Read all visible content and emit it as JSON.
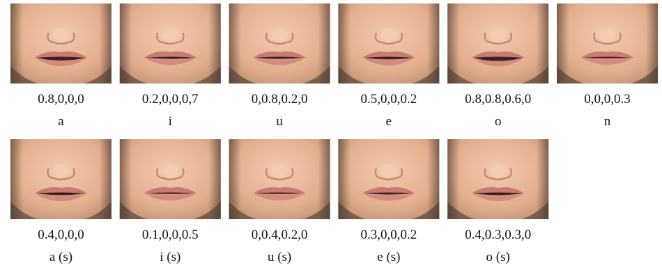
{
  "panels": [
    {
      "params": "0.8,0,0,0",
      "label": "a"
    },
    {
      "params": "0.2,0,0,0,7",
      "label": "i"
    },
    {
      "params": "0,0.8,0.2,0",
      "label": "u"
    },
    {
      "params": "0.5,0,0,0.2",
      "label": "e"
    },
    {
      "params": "0.8,0.8,0.6,0",
      "label": "o"
    },
    {
      "params": "0,0,0,0.3",
      "label": "n"
    },
    {
      "params": "0.4,0,0,0",
      "label": "a (s)"
    },
    {
      "params": "0.1,0,0,0.5",
      "label": "i (s)"
    },
    {
      "params": "0,0.4,0.2,0",
      "label": "u (s)"
    },
    {
      "params": "0.3,0,0,0.2",
      "label": "e (s)"
    },
    {
      "params": "0.4,0.3,0.3,0",
      "label": "o (s)"
    }
  ]
}
